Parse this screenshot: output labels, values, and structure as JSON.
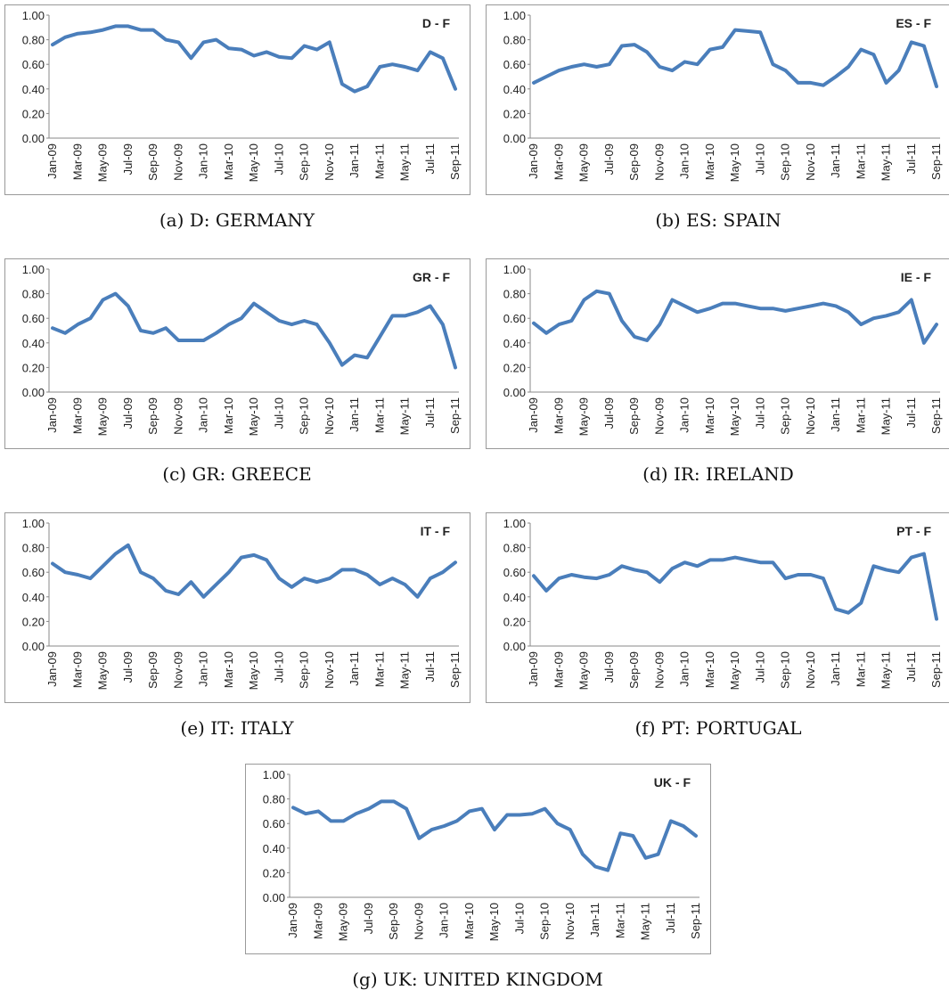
{
  "chart_data": [
    {
      "type": "line",
      "title": "D - F",
      "caption": "(a) D: GERMANY",
      "categories": [
        "Jan-09",
        null,
        "Mar-09",
        null,
        "May-09",
        null,
        "Jul-09",
        null,
        "Sep-09",
        null,
        "Nov-09",
        null,
        "Jan-10",
        null,
        "Mar-10",
        null,
        "May-10",
        null,
        "Jul-10",
        null,
        "Sep-10",
        null,
        "Nov-10",
        null,
        "Jan-11",
        null,
        "Mar-11",
        null,
        "May-11",
        null,
        "Jul-11",
        null,
        "Sep-11"
      ],
      "values": [
        0.76,
        0.82,
        0.85,
        0.86,
        0.88,
        0.91,
        0.91,
        0.88,
        0.88,
        0.8,
        0.78,
        0.65,
        0.78,
        0.8,
        0.73,
        0.72,
        0.67,
        0.7,
        0.66,
        0.65,
        0.75,
        0.72,
        0.78,
        0.44,
        0.38,
        0.42,
        0.58,
        0.6,
        0.58,
        0.55,
        0.7,
        0.65,
        0.4
      ],
      "color": "#4a7ebb",
      "ylim": [
        0,
        1
      ],
      "grid": false,
      "yticks": [
        {
          "value": 0,
          "label": "0.00"
        },
        {
          "value": 0.2,
          "label": "0.20"
        },
        {
          "value": 0.4,
          "label": "0.40"
        },
        {
          "value": 0.6,
          "label": "0.60"
        },
        {
          "value": 0.8,
          "label": "0.80"
        },
        {
          "value": 1,
          "label": "1.00"
        }
      ]
    },
    {
      "type": "line",
      "title": "ES - F",
      "caption": "(b) ES: SPAIN",
      "categories": [
        "Jan-09",
        null,
        "Mar-09",
        null,
        "May-09",
        null,
        "Jul-09",
        null,
        "Sep-09",
        null,
        "Nov-09",
        null,
        "Jan-10",
        null,
        "Mar-10",
        null,
        "May-10",
        null,
        "Jul-10",
        null,
        "Sep-10",
        null,
        "Nov-10",
        null,
        "Jan-11",
        null,
        "Mar-11",
        null,
        "May-11",
        null,
        "Jul-11",
        null,
        "Sep-11"
      ],
      "values": [
        0.45,
        0.5,
        0.55,
        0.58,
        0.6,
        0.58,
        0.6,
        0.75,
        0.76,
        0.7,
        0.58,
        0.55,
        0.62,
        0.6,
        0.72,
        0.74,
        0.88,
        0.87,
        0.86,
        0.6,
        0.55,
        0.45,
        0.45,
        0.43,
        0.5,
        0.58,
        0.72,
        0.68,
        0.45,
        0.55,
        0.78,
        0.75,
        0.42
      ],
      "color": "#4a7ebb",
      "ylim": [
        0,
        1
      ],
      "grid": false,
      "yticks": [
        {
          "value": 0,
          "label": "0.00"
        },
        {
          "value": 0.2,
          "label": "0.20"
        },
        {
          "value": 0.4,
          "label": "0.40"
        },
        {
          "value": 0.6,
          "label": "0.60"
        },
        {
          "value": 0.8,
          "label": "0.80"
        },
        {
          "value": 1,
          "label": "1.00"
        }
      ]
    },
    {
      "type": "line",
      "title": "GR - F",
      "caption": "(c) GR: GREECE",
      "categories": [
        "Jan-09",
        null,
        "Mar-09",
        null,
        "May-09",
        null,
        "Jul-09",
        null,
        "Sep-09",
        null,
        "Nov-09",
        null,
        "Jan-10",
        null,
        "Mar-10",
        null,
        "May-10",
        null,
        "Jul-10",
        null,
        "Sep-10",
        null,
        "Nov-10",
        null,
        "Jan-11",
        null,
        "Mar-11",
        null,
        "May-11",
        null,
        "Jul-11",
        null,
        "Sep-11"
      ],
      "values": [
        0.52,
        0.48,
        0.55,
        0.6,
        0.75,
        0.8,
        0.7,
        0.5,
        0.48,
        0.52,
        0.42,
        0.42,
        0.42,
        0.48,
        0.55,
        0.6,
        0.72,
        0.65,
        0.58,
        0.55,
        0.58,
        0.55,
        0.4,
        0.22,
        0.3,
        0.28,
        0.45,
        0.62,
        0.62,
        0.65,
        0.7,
        0.55,
        0.2
      ],
      "color": "#4a7ebb",
      "ylim": [
        0,
        1
      ],
      "grid": false,
      "yticks": [
        {
          "value": 0,
          "label": "0.00"
        },
        {
          "value": 0.2,
          "label": "0.20"
        },
        {
          "value": 0.4,
          "label": "0.40"
        },
        {
          "value": 0.6,
          "label": "0.60"
        },
        {
          "value": 0.8,
          "label": "0.80"
        },
        {
          "value": 1,
          "label": "1.00"
        }
      ]
    },
    {
      "type": "line",
      "title": "IE - F",
      "caption": "(d) IR: IRELAND",
      "categories": [
        "Jan-09",
        null,
        "Mar-09",
        null,
        "May-09",
        null,
        "Jul-09",
        null,
        "Sep-09",
        null,
        "Nov-09",
        null,
        "Jan-10",
        null,
        "Mar-10",
        null,
        "May-10",
        null,
        "Jul-10",
        null,
        "Sep-10",
        null,
        "Nov-10",
        null,
        "Jan-11",
        null,
        "Mar-11",
        null,
        "May-11",
        null,
        "Jul-11",
        null,
        "Sep-11"
      ],
      "values": [
        0.56,
        0.48,
        0.55,
        0.58,
        0.75,
        0.82,
        0.8,
        0.58,
        0.45,
        0.42,
        0.55,
        0.75,
        0.7,
        0.65,
        0.68,
        0.72,
        0.72,
        0.7,
        0.68,
        0.68,
        0.66,
        0.68,
        0.7,
        0.72,
        0.7,
        0.65,
        0.55,
        0.6,
        0.62,
        0.65,
        0.75,
        0.4,
        0.55
      ],
      "color": "#4a7ebb",
      "ylim": [
        0,
        1
      ],
      "grid": false,
      "yticks": [
        {
          "value": 0,
          "label": "0.00"
        },
        {
          "value": 0.2,
          "label": "0.20"
        },
        {
          "value": 0.4,
          "label": "0.40"
        },
        {
          "value": 0.6,
          "label": "0.60"
        },
        {
          "value": 0.8,
          "label": "0.80"
        },
        {
          "value": 1,
          "label": "1.00"
        }
      ]
    },
    {
      "type": "line",
      "title": "IT - F",
      "caption": "(e) IT: ITALY",
      "categories": [
        "Jan-09",
        null,
        "Mar-09",
        null,
        "May-09",
        null,
        "Jul-09",
        null,
        "Sep-09",
        null,
        "Nov-09",
        null,
        "Jan-10",
        null,
        "Mar-10",
        null,
        "May-10",
        null,
        "Jul-10",
        null,
        "Sep-10",
        null,
        "Nov-10",
        null,
        "Jan-11",
        null,
        "Mar-11",
        null,
        "May-11",
        null,
        "Jul-11",
        null,
        "Sep-11"
      ],
      "values": [
        0.67,
        0.6,
        0.58,
        0.55,
        0.65,
        0.75,
        0.82,
        0.6,
        0.55,
        0.45,
        0.42,
        0.52,
        0.4,
        0.5,
        0.6,
        0.72,
        0.74,
        0.7,
        0.55,
        0.48,
        0.55,
        0.52,
        0.55,
        0.62,
        0.62,
        0.58,
        0.5,
        0.55,
        0.5,
        0.4,
        0.55,
        0.6,
        0.68
      ],
      "color": "#4a7ebb",
      "ylim": [
        0,
        1
      ],
      "grid": false,
      "yticks": [
        {
          "value": 0,
          "label": "0.00"
        },
        {
          "value": 0.2,
          "label": "0.20"
        },
        {
          "value": 0.4,
          "label": "0.40"
        },
        {
          "value": 0.6,
          "label": "0.60"
        },
        {
          "value": 0.8,
          "label": "0.80"
        },
        {
          "value": 1,
          "label": "1.00"
        }
      ]
    },
    {
      "type": "line",
      "title": "PT - F",
      "caption": "(f) PT: PORTUGAL",
      "categories": [
        "Jan-09",
        null,
        "Mar-09",
        null,
        "May-09",
        null,
        "Jul-09",
        null,
        "Sep-09",
        null,
        "Nov-09",
        null,
        "Jan-10",
        null,
        "Mar-10",
        null,
        "May-10",
        null,
        "Jul-10",
        null,
        "Sep-10",
        null,
        "Nov-10",
        null,
        "Jan-11",
        null,
        "Mar-11",
        null,
        "May-11",
        null,
        "Jul-11",
        null,
        "Sep-11"
      ],
      "values": [
        0.57,
        0.45,
        0.55,
        0.58,
        0.56,
        0.55,
        0.58,
        0.65,
        0.62,
        0.6,
        0.52,
        0.63,
        0.68,
        0.65,
        0.7,
        0.7,
        0.72,
        0.7,
        0.68,
        0.68,
        0.55,
        0.58,
        0.58,
        0.55,
        0.3,
        0.27,
        0.35,
        0.65,
        0.62,
        0.6,
        0.72,
        0.75,
        0.22
      ],
      "color": "#4a7ebb",
      "ylim": [
        0,
        1
      ],
      "grid": false,
      "yticks": [
        {
          "value": 0,
          "label": "0.00"
        },
        {
          "value": 0.2,
          "label": "0.20"
        },
        {
          "value": 0.4,
          "label": "0.40"
        },
        {
          "value": 0.6,
          "label": "0.60"
        },
        {
          "value": 0.8,
          "label": "0.80"
        },
        {
          "value": 1,
          "label": "1.00"
        }
      ]
    },
    {
      "type": "line",
      "title": "UK - F",
      "caption": "(g) UK: UNITED KINGDOM",
      "categories": [
        "Jan-09",
        null,
        "Mar-09",
        null,
        "May-09",
        null,
        "Jul-09",
        null,
        "Sep-09",
        null,
        "Nov-09",
        null,
        "Jan-10",
        null,
        "Mar-10",
        null,
        "May-10",
        null,
        "Jul-10",
        null,
        "Sep-10",
        null,
        "Nov-10",
        null,
        "Jan-11",
        null,
        "Mar-11",
        null,
        "May-11",
        null,
        "Jul-11",
        null,
        "Sep-11"
      ],
      "values": [
        0.73,
        0.68,
        0.7,
        0.62,
        0.62,
        0.68,
        0.72,
        0.78,
        0.78,
        0.72,
        0.48,
        0.55,
        0.58,
        0.62,
        0.7,
        0.72,
        0.55,
        0.67,
        0.67,
        0.68,
        0.72,
        0.6,
        0.55,
        0.35,
        0.25,
        0.22,
        0.52,
        0.5,
        0.32,
        0.35,
        0.62,
        0.58,
        0.5
      ],
      "color": "#4a7ebb",
      "ylim": [
        0,
        1
      ],
      "grid": false,
      "yticks": [
        {
          "value": 0,
          "label": "0.00"
        },
        {
          "value": 0.2,
          "label": "0.20"
        },
        {
          "value": 0.4,
          "label": "0.40"
        },
        {
          "value": 0.6,
          "label": "0.60"
        },
        {
          "value": 0.8,
          "label": "0.80"
        },
        {
          "value": 1,
          "label": "1.00"
        }
      ]
    }
  ]
}
